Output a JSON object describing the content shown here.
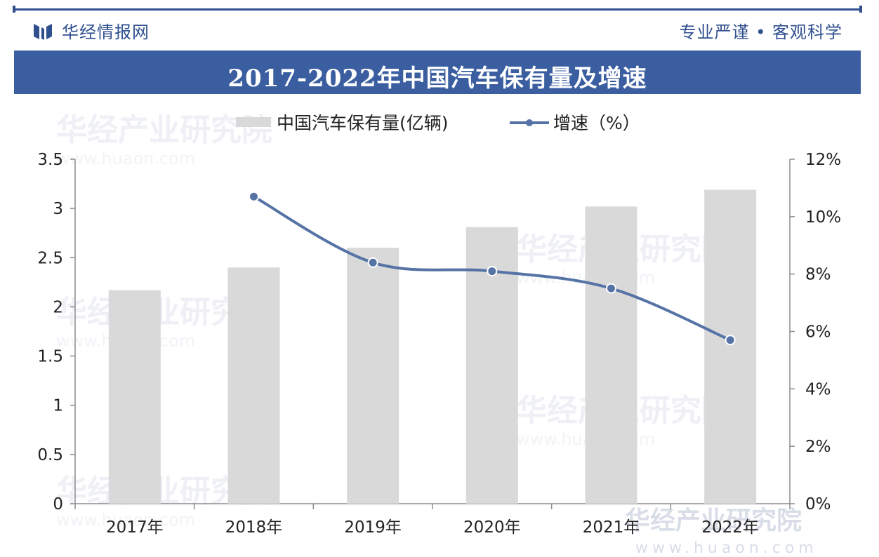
{
  "header": {
    "brand": "华经情报网",
    "slogan": "专业严谨 • 客观科学"
  },
  "watermark": {
    "text": "华经产业研究院",
    "url": "www.huaon.com"
  },
  "colors": {
    "accent": "#3a5ea0",
    "bar": "#d9d9d9",
    "line": "#5673a6"
  },
  "chart_data": {
    "type": "bar",
    "title": "2017-2022年中国汽车保有量及增速",
    "categories": [
      "2017年",
      "2018年",
      "2019年",
      "2020年",
      "2021年",
      "2022年"
    ],
    "series": [
      {
        "name": "中国汽车保有量(亿辆)",
        "type": "bar",
        "axis": "left",
        "values": [
          2.17,
          2.4,
          2.6,
          2.81,
          3.02,
          3.19
        ]
      },
      {
        "name": "增速（%）",
        "type": "line",
        "axis": "right",
        "values": [
          null,
          10.7,
          8.4,
          8.1,
          7.5,
          5.7
        ]
      }
    ],
    "left_axis": {
      "ylim": [
        0,
        3.5
      ],
      "ticks": [
        "0",
        "0.5",
        "1",
        "1.5",
        "2",
        "2.5",
        "3",
        "3.5"
      ]
    },
    "right_axis": {
      "ylim": [
        0,
        12
      ],
      "ticks": [
        "0%",
        "2%",
        "4%",
        "6%",
        "8%",
        "10%",
        "12%"
      ]
    },
    "legend": "top-center",
    "grid": false
  }
}
